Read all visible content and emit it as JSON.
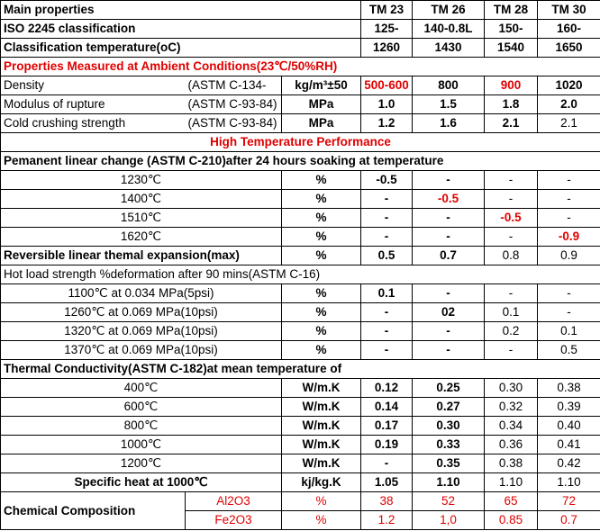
{
  "table": {
    "rows": [
      [
        "Main properties",
        "TM 23",
        "TM 26",
        "TM 28",
        "TM 30"
      ],
      [
        "ISO 2245 classification",
        "125-",
        "140-0.8L",
        "150-",
        "160-"
      ],
      [
        "Classification temperature(oC)",
        "1260",
        "1430",
        "1540",
        "1650"
      ],
      [
        "Properties Measured at Ambient Conditions(23℃/50%RH)"
      ],
      [
        "Density",
        "(ASTM C-134-",
        "kg/m³±50",
        "500-600",
        "800",
        "900",
        "1020"
      ],
      [
        "Modulus of rupture",
        "(ASTM C-93-84)",
        "MPa",
        "1.0",
        "1.5",
        "1.8",
        "2.0"
      ],
      [
        "Cold crushing strength",
        "(ASTM  C-93-84)",
        "MPa",
        "1.2",
        "1.6",
        "2.1",
        "2.1"
      ],
      [
        "High Temperature Performance"
      ],
      [
        "Pemanent linear change (ASTM C-210)after 24 hours soaking at temperature"
      ],
      [
        "1230℃",
        "%",
        "-0.5",
        "-",
        "-",
        "-"
      ],
      [
        "1400℃",
        "%",
        "-",
        "-0.5",
        "-",
        "-"
      ],
      [
        "1510℃",
        "%",
        "-",
        "-",
        "-0.5",
        "-"
      ],
      [
        "1620℃",
        "%",
        "-",
        "-",
        "-",
        "-0.9"
      ],
      [
        "Reversible linear themal  expansion(max)",
        "%",
        "0.5",
        "0.7",
        "0.8",
        "0.9"
      ],
      [
        "Hot load strength %deformation after    90 mins(ASTM C-16)"
      ],
      [
        "1100℃ at 0.034 MPa(5psi)",
        "%",
        "0.1",
        "-",
        "-",
        "-"
      ],
      [
        "1260℃ at 0.069 MPa(10psi)",
        "%",
        "-",
        "02",
        "0.1",
        "-"
      ],
      [
        "1320℃ at 0.069 MPa(10psi)",
        "%",
        "-",
        "-",
        "0.2",
        "0.1"
      ],
      [
        "1370℃ at 0.069 MPa(10psi)",
        "%",
        "-",
        "-",
        "-",
        "0.5"
      ],
      [
        "Thermal Conductivity(ASTM C-182)at mean temperature of"
      ],
      [
        "400℃",
        "W/m.K",
        "0.12",
        "0.25",
        "0.30",
        "0.38"
      ],
      [
        "600℃",
        "W/m.K",
        "0.14",
        "0.27",
        "0.32",
        "0.39"
      ],
      [
        "800℃",
        "W/m.K",
        "0.17",
        "0.30",
        "0.34",
        "0.40"
      ],
      [
        "1000℃",
        "W/m.K",
        "0.19",
        "0.33",
        "0.36",
        "0.41"
      ],
      [
        "1200℃",
        "W/m.K",
        "-",
        "0.35",
        "0.38",
        "0.42"
      ],
      [
        "Specific heat at 1000℃",
        "kj/kg.K",
        "1.05",
        "1.10",
        "1.10",
        "1.10"
      ],
      [
        "Chemical Composition",
        "Al2O3",
        "%",
        "38",
        "52",
        "65",
        "72"
      ],
      [
        "Fe2O3",
        "%",
        "1.2",
        "1,0",
        "0.85",
        "0.7"
      ]
    ]
  }
}
